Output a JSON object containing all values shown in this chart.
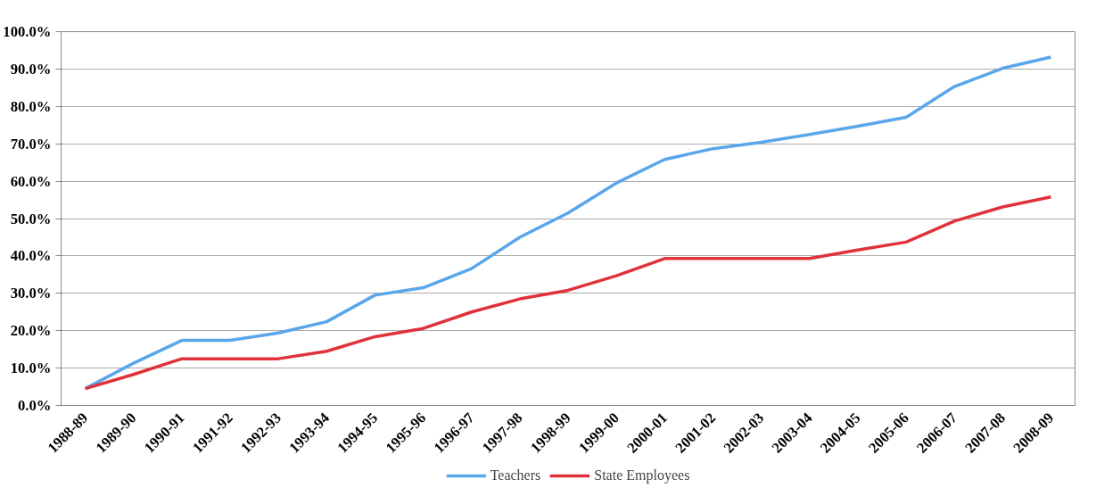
{
  "chart_data": {
    "type": "line",
    "categories": [
      "1988-89",
      "1989-90",
      "1990-91",
      "1991-92",
      "1992-93",
      "1993-94",
      "1994-95",
      "1995-96",
      "1996-97",
      "1997-98",
      "1998-99",
      "1999-00",
      "2000-01",
      "2001-02",
      "2002-03",
      "2003-04",
      "2004-05",
      "2005-06",
      "2006-07",
      "2007-08",
      "2008-09"
    ],
    "series": [
      {
        "name": "Teachers",
        "color": "#5aa6ea",
        "values": [
          4.5,
          11.3,
          17.4,
          17.4,
          19.4,
          22.4,
          29.5,
          31.5,
          36.6,
          45,
          51.5,
          59.5,
          65.8,
          68.7,
          70.4,
          72.5,
          74.7,
          77.1,
          85.3,
          90.2,
          93.2
        ]
      },
      {
        "name": "State Employees",
        "color": "#e0323a",
        "values": [
          4.5,
          8.3,
          12.5,
          12.5,
          12.5,
          14.5,
          18.4,
          20.6,
          25,
          28.5,
          30.8,
          34.7,
          39.3,
          39.3,
          39.3,
          39.3,
          41.6,
          43.7,
          49.3,
          53.1,
          55.8
        ]
      }
    ],
    "ylim": [
      0,
      100
    ],
    "yticks": [
      {
        "value": 0,
        "label": "0.0%"
      },
      {
        "value": 10,
        "label": "10.0%"
      },
      {
        "value": 20,
        "label": "20.0%"
      },
      {
        "value": 30,
        "label": "30.0%"
      },
      {
        "value": 40,
        "label": "40.0%"
      },
      {
        "value": 50,
        "label": "50.0%"
      },
      {
        "value": 60,
        "label": "60.0%"
      },
      {
        "value": 70,
        "label": "70.0%"
      },
      {
        "value": 80,
        "label": "80.0%"
      },
      {
        "value": 90,
        "label": "90.0%"
      },
      {
        "value": 100,
        "label": "100.0%"
      }
    ],
    "grid": "y",
    "legend": "bottom",
    "marker": "none",
    "line_style": "solid"
  }
}
